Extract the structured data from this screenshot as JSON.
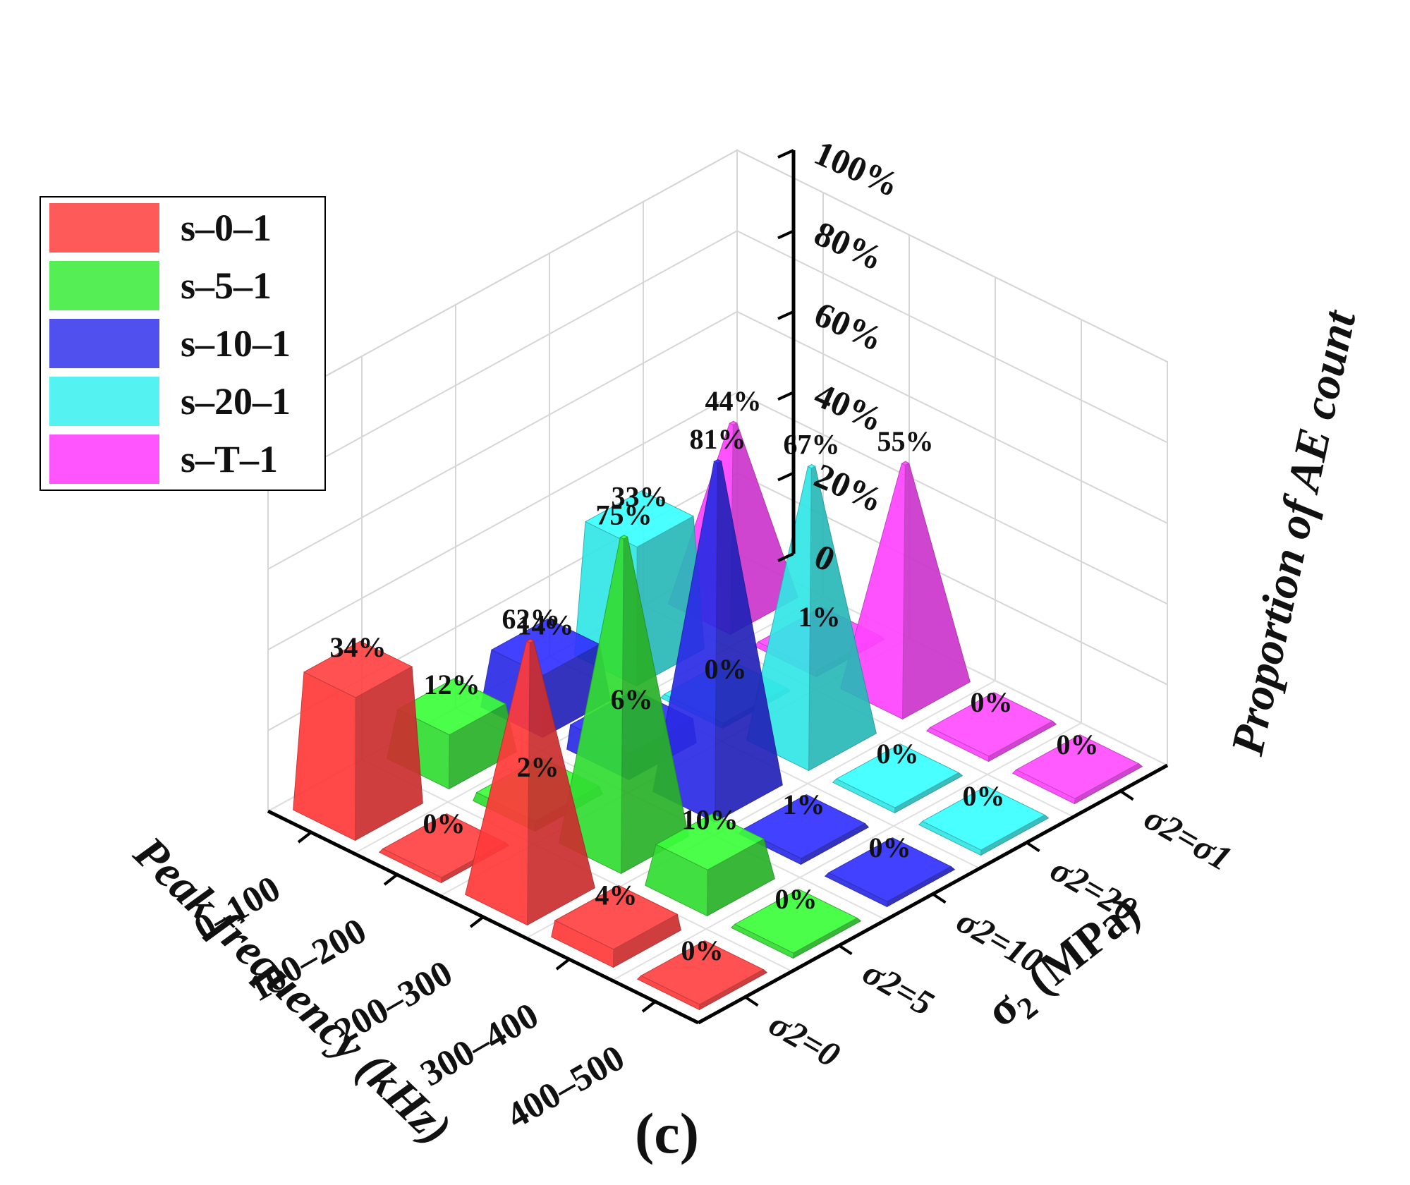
{
  "chart_data": {
    "type": "bar3d",
    "panel_label": "(c)",
    "zlabel": "Proportion of AE count",
    "xlabel": "Peak frequency (kHz)",
    "ylabel": "σ",
    "ylabel_sub": "2",
    "ylabel_unit": " (MPa)",
    "zlim": [
      0,
      100
    ],
    "z_ticks": [
      "0",
      "20%",
      "40%",
      "60%",
      "80%",
      "100%"
    ],
    "frequency_bins": [
      "0–100",
      "100–200",
      "200–300",
      "300–400",
      "400–500"
    ],
    "stress_levels": [
      "σ2=0",
      "σ2=5",
      "σ2=10",
      "σ2=20",
      "σ2=σ1"
    ],
    "series": [
      {
        "name": "s–0–1",
        "color": "#ff3a3a",
        "bars": [
          {
            "bin": 0,
            "value": 34,
            "label": "34%"
          },
          {
            "bin": 1,
            "value": 0,
            "label": "0%"
          },
          {
            "bin": 2,
            "value": 62,
            "label": "62%"
          },
          {
            "bin": 3,
            "value": 4,
            "label": "4%"
          },
          {
            "bin": 4,
            "value": 0,
            "label": "0%"
          }
        ]
      },
      {
        "name": "s–5–1",
        "color": "#33dd33",
        "bars": [
          {
            "bin": 0,
            "value": 12,
            "label": "12%"
          },
          {
            "bin": 1,
            "value": 2,
            "label": "2%"
          },
          {
            "bin": 2,
            "value": 75,
            "label": "75%"
          },
          {
            "bin": 3,
            "value": 10,
            "label": "10%"
          },
          {
            "bin": 4,
            "value": 0,
            "label": "0%"
          }
        ]
      },
      {
        "name": "s–10–1",
        "color": "#2b2be6",
        "bars": [
          {
            "bin": 0,
            "value": 14,
            "label": "14%"
          },
          {
            "bin": 1,
            "value": 6,
            "label": "6%"
          },
          {
            "bin": 2,
            "value": 81,
            "label": "81%"
          },
          {
            "bin": 3,
            "value": 1,
            "label": "1%"
          },
          {
            "bin": 4,
            "value": 0,
            "label": "0%"
          }
        ]
      },
      {
        "name": "s–20–1",
        "color": "#33e6e6",
        "bars": [
          {
            "bin": 0,
            "value": 33,
            "label": "33%"
          },
          {
            "bin": 1,
            "value": 0,
            "label": "0%"
          },
          {
            "bin": 2,
            "value": 67,
            "label": "67%"
          },
          {
            "bin": 3,
            "value": 0,
            "label": "0%"
          },
          {
            "bin": 4,
            "value": 0,
            "label": "0%"
          }
        ]
      },
      {
        "name": "s–T–1",
        "color": "#ff44ff",
        "bars": [
          {
            "bin": 0,
            "value": 44,
            "label": "44%"
          },
          {
            "bin": 1,
            "value": 1,
            "label": "1%"
          },
          {
            "bin": 2,
            "value": 55,
            "label": "55%"
          },
          {
            "bin": 3,
            "value": 0,
            "label": "0%"
          },
          {
            "bin": 4,
            "value": 0,
            "label": "0%"
          }
        ]
      }
    ]
  }
}
